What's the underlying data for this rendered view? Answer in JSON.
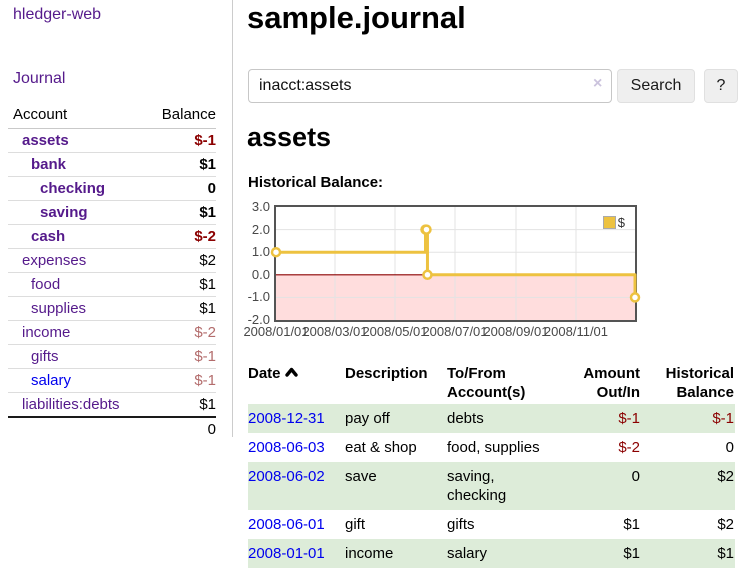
{
  "colors": {
    "link_purple": "#551a8b",
    "link_blue": "#0000ee",
    "negative_strong": "#8b0000",
    "negative_faded": "#b36c6c",
    "row_stripe_green": "#ddecd9",
    "series_yellow": "#edc240"
  },
  "app_title": "hledger-web",
  "sidebar": {
    "journal_link": "Journal",
    "accounts": {
      "account_header": "Account",
      "balance_header": "Balance",
      "rows": [
        {
          "account": "assets",
          "balance": "$-1",
          "depth": 1,
          "bold": true,
          "balance_style": "neg-strong",
          "link_style": "purple"
        },
        {
          "account": "bank",
          "balance": "$1",
          "depth": 2,
          "bold": true,
          "balance_style": "normal",
          "link_style": "purple"
        },
        {
          "account": "checking",
          "balance": "0",
          "depth": 3,
          "bold": true,
          "balance_style": "normal",
          "link_style": "purple"
        },
        {
          "account": "saving",
          "balance": "$1",
          "depth": 3,
          "bold": true,
          "balance_style": "normal",
          "link_style": "purple"
        },
        {
          "account": "cash",
          "balance": "$-2",
          "depth": 2,
          "bold": true,
          "balance_style": "neg-strong",
          "link_style": "purple"
        },
        {
          "account": "expenses",
          "balance": "$2",
          "depth": 1,
          "bold": false,
          "balance_style": "normal",
          "link_style": "purple"
        },
        {
          "account": "food",
          "balance": "$1",
          "depth": 2,
          "bold": false,
          "balance_style": "normal",
          "link_style": "purple"
        },
        {
          "account": "supplies",
          "balance": "$1",
          "depth": 2,
          "bold": false,
          "balance_style": "normal",
          "link_style": "purple"
        },
        {
          "account": "income",
          "balance": "$-2",
          "depth": 1,
          "bold": false,
          "balance_style": "neg-faded",
          "link_style": "purple"
        },
        {
          "account": "gifts",
          "balance": "$-1",
          "depth": 2,
          "bold": false,
          "balance_style": "neg-faded",
          "link_style": "purple"
        },
        {
          "account": "salary",
          "balance": "$-1",
          "depth": 2,
          "bold": false,
          "balance_style": "neg-faded",
          "link_style": "blue"
        },
        {
          "account": "liabilities:debts",
          "balance": "$1",
          "depth": 1,
          "bold": false,
          "balance_style": "normal",
          "link_style": "purple"
        }
      ],
      "total": "0"
    }
  },
  "header": {
    "title": "sample.journal"
  },
  "search": {
    "value": "inacct:assets",
    "clear_icon": "×",
    "button_label": "Search",
    "help_label": "?"
  },
  "account_page": {
    "heading": "assets",
    "chart_label": "Historical Balance:"
  },
  "chart_data": {
    "type": "line",
    "step": true,
    "title": "Historical Balance:",
    "series": [
      {
        "name": "$",
        "color": "#edc240",
        "points": [
          [
            "2008-01-01",
            1.0
          ],
          [
            "2008-06-01",
            2.0
          ],
          [
            "2008-06-02",
            2.0
          ],
          [
            "2008-06-03",
            0.0
          ],
          [
            "2008-12-31",
            -1.0
          ]
        ]
      }
    ],
    "xlim": [
      "2008-01-01",
      "2008-12-31"
    ],
    "ylim": [
      -2,
      3
    ],
    "y_ticks": [
      "3.0",
      "2.0",
      "1.0",
      "0.0",
      "-1.0",
      "-2.0"
    ],
    "x_ticks": [
      "2008/01/01",
      "2008/03/01",
      "2008/05/01",
      "2008/07/01",
      "2008/09/01",
      "2008/11/01"
    ],
    "legend_position": "top-right",
    "grid": true,
    "grid_color": "#e3e3e3",
    "negative_region_color": "#ffdddd",
    "zero_line_color": "#8b0000"
  },
  "register": {
    "columns": [
      {
        "label": "Date",
        "align": "left",
        "sortable": true,
        "sort_icon": "chevron-up"
      },
      {
        "label": "Description",
        "align": "left"
      },
      {
        "label": "To/From Account(s)",
        "align": "left"
      },
      {
        "label": "Amount Out/In",
        "align": "right"
      },
      {
        "label": "Historical Balance",
        "align": "right"
      }
    ],
    "rows": [
      {
        "date": "2008-12-31",
        "description": "pay off",
        "accounts": "debts",
        "amount": "$-1",
        "amount_style": "neg-strong",
        "balance": "$-1",
        "balance_style": "neg-strong",
        "striped": true
      },
      {
        "date": "2008-06-03",
        "description": "eat & shop",
        "accounts": "food, supplies",
        "amount": "$-2",
        "amount_style": "neg-strong",
        "balance": "0",
        "balance_style": "normal",
        "striped": false
      },
      {
        "date": "2008-06-02",
        "description": "save",
        "accounts": "saving, checking",
        "amount": "0",
        "amount_style": "normal",
        "balance": "$2",
        "balance_style": "normal",
        "striped": true
      },
      {
        "date": "2008-06-01",
        "description": "gift",
        "accounts": "gifts",
        "amount": "$1",
        "amount_style": "normal",
        "balance": "$2",
        "balance_style": "normal",
        "striped": false
      },
      {
        "date": "2008-01-01",
        "description": "income",
        "accounts": "salary",
        "amount": "$1",
        "amount_style": "normal",
        "balance": "$1",
        "balance_style": "normal",
        "striped": true
      }
    ]
  }
}
